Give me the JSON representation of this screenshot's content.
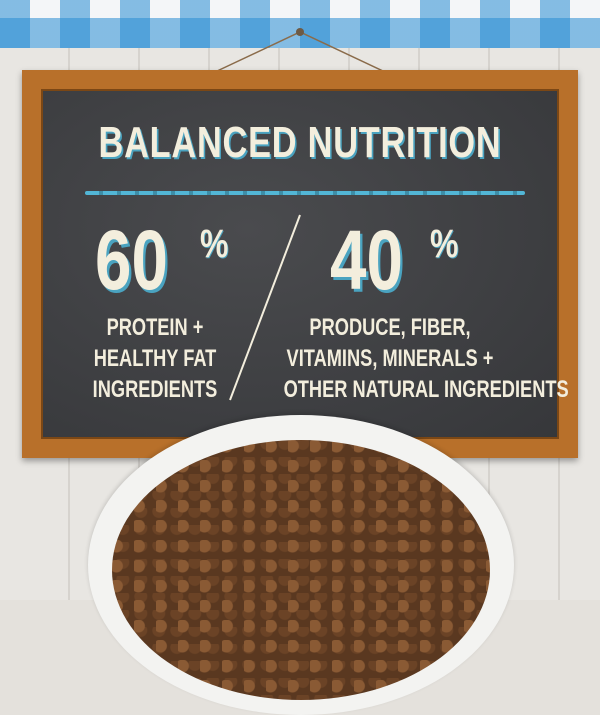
{
  "board": {
    "title": "BALANCED NUTRITION",
    "left": {
      "value": "60",
      "unit": "%",
      "lines": [
        "PROTEIN +",
        "HEALTHY FAT",
        "INGREDIENTS"
      ]
    },
    "right": {
      "value": "40",
      "unit": "%",
      "lines": [
        "PRODUCE, FIBER,",
        "VITAMINS, MINERALS +",
        "OTHER NATURAL INGREDIENTS"
      ]
    }
  },
  "colors": {
    "accent": "#4aa3c0",
    "chalk": "#f3eedd",
    "frame": "#b8702a",
    "board": "#3e3f42",
    "gingham": "#288cd2"
  }
}
